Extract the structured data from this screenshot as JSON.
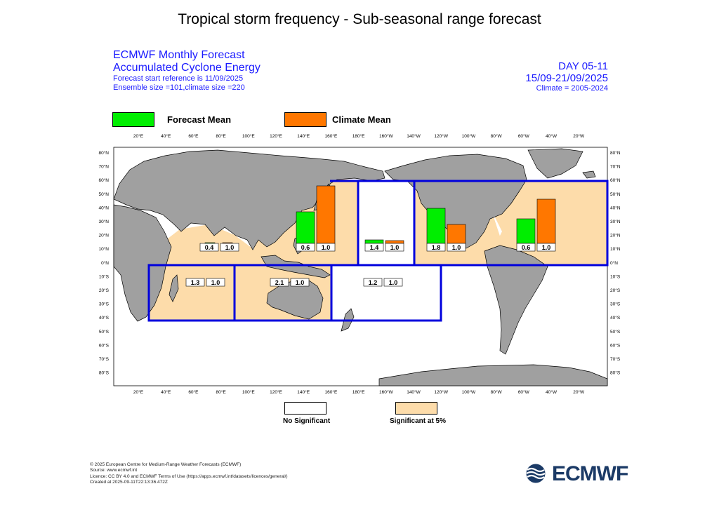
{
  "title": "Tropical storm frequency - Sub-seasonal range forecast",
  "header_left": {
    "line1": "ECMWF Monthly Forecast",
    "line2": "Accumulated Cyclone Energy",
    "line3": "Forecast start reference is 11/09/2025",
    "line4": "Ensemble size =101,climate size =220"
  },
  "header_right": {
    "line1": "DAY 05-11",
    "line2": "15/09-21/09/2025",
    "line3": "Climate = 2005-2024"
  },
  "legend": {
    "forecast_label": "Forecast Mean",
    "climate_label": "Climate Mean",
    "forecast_color": "#00ee00",
    "climate_color": "#ff7700"
  },
  "significance_legend": {
    "not_significant": "No Significant",
    "significant": "Significant at 5%",
    "significant_color": "#fddcaa"
  },
  "axes": {
    "top_lon": [
      "20°E",
      "40°E",
      "60°E",
      "80°E",
      "100°E",
      "120°E",
      "140°E",
      "160°E",
      "180°E",
      "160°W",
      "140°W",
      "120°W",
      "100°W",
      "80°W",
      "60°W",
      "40°W",
      "20°W"
    ],
    "bottom_lon": [
      "20°E",
      "40°E",
      "60°E",
      "80°E",
      "100°E",
      "120°E",
      "140°E",
      "160°E",
      "180°E",
      "160°W",
      "140°W",
      "120°W",
      "100°W",
      "80°W",
      "60°W",
      "40°W",
      "20°W"
    ],
    "left_lat": [
      "80°N",
      "70°N",
      "60°N",
      "50°N",
      "40°N",
      "30°N",
      "20°N",
      "10°N",
      "0°N",
      "10°S",
      "20°S",
      "30°S",
      "40°S",
      "50°S",
      "60°S",
      "70°S",
      "80°S"
    ],
    "right_lat": [
      "80°N",
      "70°N",
      "60°N",
      "50°N",
      "40°N",
      "30°N",
      "20°N",
      "10°N",
      "0°N",
      "10°S",
      "20°S",
      "30°S",
      "40°S",
      "50°S",
      "60°S",
      "70°S",
      "80°S"
    ]
  },
  "regions": [
    {
      "name": "North Indian Ocean",
      "significant": true,
      "forecast": "0.4",
      "climate": "1.0"
    },
    {
      "name": "Western North Pacific",
      "significant": true,
      "forecast": "0.6",
      "climate": "1.0"
    },
    {
      "name": "Central North Pacific",
      "significant": false,
      "forecast": "1.4",
      "climate": "1.0"
    },
    {
      "name": "Eastern North Pacific",
      "significant": true,
      "forecast": "1.8",
      "climate": "1.0"
    },
    {
      "name": "North Atlantic",
      "significant": true,
      "forecast": "0.6",
      "climate": "1.0"
    },
    {
      "name": "South-West Indian Ocean",
      "significant": true,
      "forecast": "1.3",
      "climate": "1.0"
    },
    {
      "name": "Australian Basin",
      "significant": true,
      "forecast": "2.1",
      "climate": "1.0"
    },
    {
      "name": "South Pacific",
      "significant": false,
      "forecast": "1.2",
      "climate": "1.0"
    }
  ],
  "footer": {
    "line1": "© 2025 European Centre for Medium-Range Weather Forecasts (ECMWF)",
    "line2": "Source: www.ecmwf.int",
    "line3": "Licence: CC BY 4.0 and ECMWF Terms of Use (https://apps.ecmwf.int/datasets/licences/general/)",
    "line4": "Created at 2025-09-11T22:13:36.472Z"
  },
  "logo": {
    "text": "ECMWF",
    "color": "#1b3a66"
  }
}
